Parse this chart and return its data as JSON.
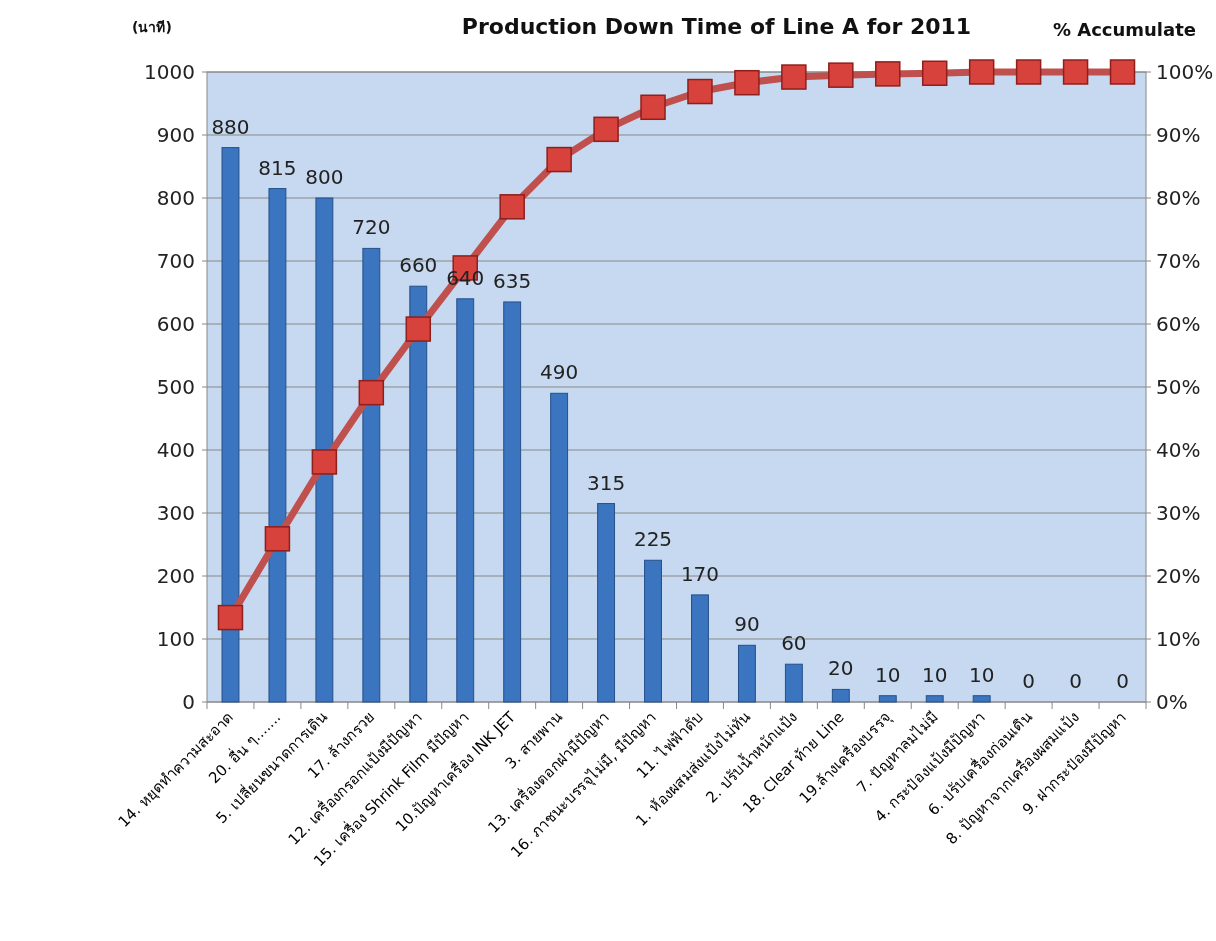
{
  "chart_data": {
    "type": "bar",
    "title": "Production Down Time of Line A for 2011",
    "ylabel": "(นาที)",
    "y2label": "% Accumulate",
    "categories": [
      "14. หยุดทำความสะอาด",
      "20. อื่น ๆ.......",
      "5. เปลี่ยนขนาดการเดิน",
      "17. ล้างกรวย",
      "12. เครื่องกรอกแป้งมีปัญหา",
      "15. เครื่อง Shrink Film มีปัญหา",
      "10.ปัญหาเครื่อง INK JET",
      "3. สายพาน",
      "13. เครื่องตอกฝามีปัญหา",
      "16. ภาชนะบรรจุไม่มี, มีปัญหา",
      "11. ไฟฟ้าดับ",
      "1. ห้องผสมส่งแป้งไม่ทัน",
      "2. ปรับน้ำหนักแป้ง",
      "18. Clear ท้าย Line",
      "19.ล้างเครื่องบรรจุ",
      "7. ปัญหาลมไม่มี",
      "4. กระป๋องแป้งมีปัญหา",
      "6. ปรับเครื่องก่อนเดิน",
      "8. ปัญหาจากเครื่องผสมแป้ง",
      "9. ฝากระป๋องมีปัญหา"
    ],
    "series": [
      {
        "type": "bar",
        "color": "#3b74bf",
        "data_labels": true,
        "values": [
          880,
          815,
          800,
          720,
          660,
          640,
          635,
          490,
          315,
          225,
          170,
          90,
          60,
          20,
          10,
          10,
          10,
          0,
          0,
          0
        ]
      },
      {
        "type": "line",
        "axis": "y2",
        "color": "#c0504d",
        "marker": "square",
        "values": [
          13.4,
          25.9,
          38.1,
          49.1,
          59.2,
          68.9,
          78.6,
          86.1,
          90.9,
          94.4,
          96.9,
          98.3,
          99.2,
          99.5,
          99.7,
          99.8,
          100,
          100,
          100,
          100
        ]
      }
    ],
    "ylim": [
      0,
      1000
    ],
    "yticks": [
      0,
      100,
      200,
      300,
      400,
      500,
      600,
      700,
      800,
      900,
      1000
    ],
    "y2lim": [
      0,
      100
    ],
    "y2ticks": [
      {
        "value": 0,
        "label": "0%"
      },
      {
        "value": 10,
        "label": "10%"
      },
      {
        "value": 20,
        "label": "20%"
      },
      {
        "value": 30,
        "label": "30%"
      },
      {
        "value": 40,
        "label": "40%"
      },
      {
        "value": 50,
        "label": "50%"
      },
      {
        "value": 60,
        "label": "60%"
      },
      {
        "value": 70,
        "label": "70%"
      },
      {
        "value": 80,
        "label": "80%"
      },
      {
        "value": 90,
        "label": "90%"
      },
      {
        "value": 100,
        "label": "100%"
      }
    ],
    "grid": "y"
  }
}
